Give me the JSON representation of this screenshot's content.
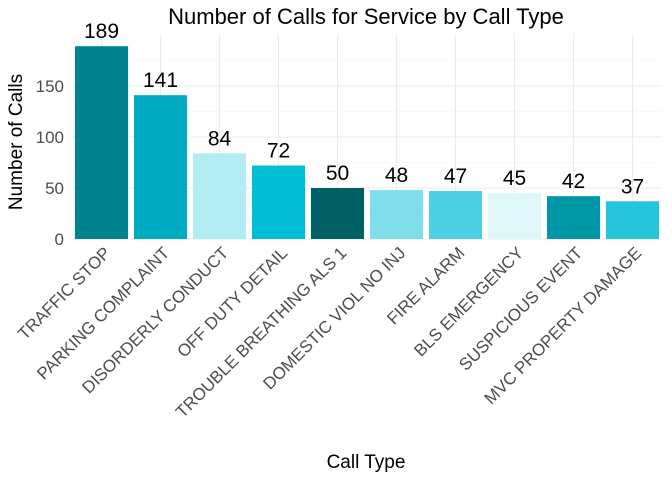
{
  "chart_data": {
    "type": "bar",
    "title": "Number of Calls for Service by Call Type",
    "xlabel": "Call Type",
    "ylabel": "Number of Calls",
    "ylim": [
      0,
      200
    ],
    "yticks": [
      0,
      50,
      100,
      150
    ],
    "grid": true,
    "categories": [
      "TRAFFIC STOP",
      "PARKING COMPLAINT",
      "DISORDERLY CONDUCT",
      "OFF DUTY DETAIL",
      "TROUBLE BREATHING ALS 1",
      "DOMESTIC VIOL NO INJ",
      "FIRE ALARM",
      "BLS EMERGENCY",
      "SUSPICIOUS EVENT",
      "MVC PROPERTY DAMAGE"
    ],
    "values": [
      189,
      141,
      84,
      72,
      50,
      48,
      47,
      45,
      42,
      37
    ],
    "data_labels": [
      "189",
      "141",
      "84",
      "72",
      "50",
      "48",
      "47",
      "45",
      "42",
      "37"
    ],
    "colors": [
      "#00838F",
      "#00ACC1",
      "#B2EBF2",
      "#00BCD4",
      "#006064",
      "#80DEEA",
      "#4DD0E1",
      "#E0F7FA",
      "#0097A7",
      "#26C6DA"
    ]
  }
}
